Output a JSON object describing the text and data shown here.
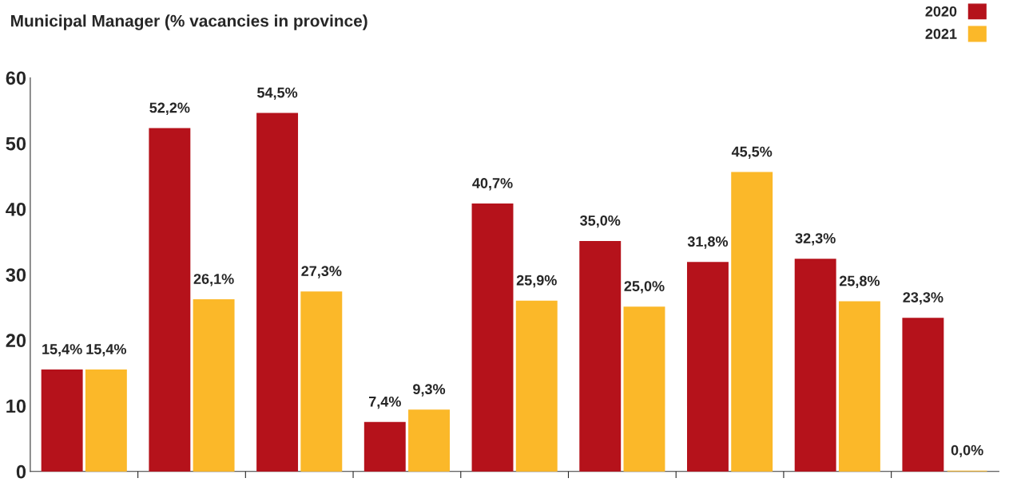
{
  "chart_data": {
    "type": "bar",
    "title": "Municipal Manager (% vacancies in province)",
    "categories": [
      null,
      null,
      null,
      null,
      null,
      null,
      null,
      null,
      null
    ],
    "series": [
      {
        "name": "2020",
        "color": "#b5121b",
        "values": [
          15.4,
          52.2,
          54.5,
          7.4,
          40.7,
          35.0,
          31.8,
          32.3,
          23.3
        ],
        "value_labels": [
          "15,4%",
          "52,2%",
          "54,5%",
          "7,4%",
          "40,7%",
          "35,0%",
          "31,8%",
          "32,3%",
          "23,3%"
        ]
      },
      {
        "name": "2021",
        "color": "#fbb829",
        "values": [
          15.4,
          26.1,
          27.3,
          9.3,
          25.9,
          25.0,
          45.5,
          25.8,
          0.0
        ],
        "value_labels": [
          "15,4%",
          "26,1%",
          "27,3%",
          "9,3%",
          "25,9%",
          "25,0%",
          "45,5%",
          "25,8%",
          "0,0%"
        ]
      }
    ],
    "ylim": [
      0,
      60
    ],
    "yticks": [
      0,
      10,
      20,
      30,
      40,
      50,
      60
    ],
    "grid": false,
    "legend": "top right",
    "tick_labels": "y"
  }
}
